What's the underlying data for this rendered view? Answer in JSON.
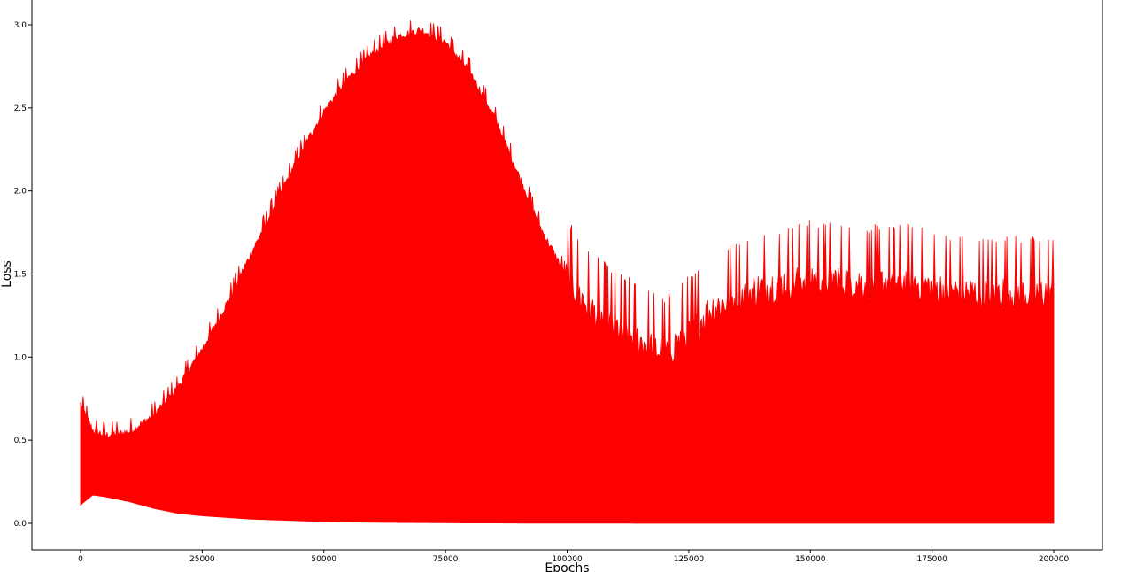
{
  "chart_data": {
    "type": "line",
    "title": "",
    "xlabel": "Epochs",
    "ylabel": "Loss",
    "xlim": [
      -10000,
      210000
    ],
    "ylim": [
      -0.16,
      3.16
    ],
    "grid": false,
    "legend": "none",
    "series": [
      {
        "color": "#ff0000",
        "description_values": "dense oscillation; upper envelope and lower envelope sampled every 5000 epochs",
        "x": [
          0,
          2500,
          5000,
          10000,
          15000,
          20000,
          25000,
          30000,
          35000,
          40000,
          45000,
          50000,
          55000,
          60000,
          65000,
          70000,
          75000,
          80000,
          85000,
          90000,
          95000,
          100000,
          105000,
          110000,
          115000,
          120000,
          125000,
          130000,
          135000,
          140000,
          145000,
          150000,
          155000,
          160000,
          165000,
          170000,
          175000,
          180000,
          185000,
          190000,
          195000,
          200000
        ],
        "upper": [
          0.72,
          0.56,
          0.53,
          0.55,
          0.65,
          0.82,
          1.05,
          1.32,
          1.62,
          1.92,
          2.22,
          2.48,
          2.68,
          2.83,
          2.93,
          2.97,
          2.9,
          2.72,
          2.45,
          2.1,
          1.75,
          1.48,
          1.28,
          1.18,
          1.1,
          1.02,
          1.15,
          1.3,
          1.36,
          1.42,
          1.45,
          1.48,
          1.47,
          1.45,
          1.45,
          1.46,
          1.42,
          1.4,
          1.38,
          1.4,
          1.38,
          1.4
        ],
        "lower": [
          0.11,
          0.17,
          0.16,
          0.13,
          0.09,
          0.06,
          0.045,
          0.035,
          0.025,
          0.02,
          0.015,
          0.01,
          0.008,
          0.006,
          0.005,
          0.004,
          0.003,
          0.002,
          0.002,
          0.001,
          0.001,
          0.001,
          0.001,
          0.001,
          0.0,
          0.0,
          0.0,
          0.0,
          0.0,
          0.0,
          0.0,
          0.0,
          0.0,
          0.0,
          0.0,
          0.0,
          0.0,
          0.0,
          0.0,
          0.0,
          0.0,
          0.0
        ]
      }
    ],
    "x_ticks": [
      "0",
      "25000",
      "50000",
      "75000",
      "100000",
      "125000",
      "150000",
      "175000",
      "200000"
    ],
    "y_ticks": [
      "0.0",
      "0.5",
      "1.0",
      "1.5",
      "2.0",
      "2.5",
      "3.0"
    ]
  }
}
